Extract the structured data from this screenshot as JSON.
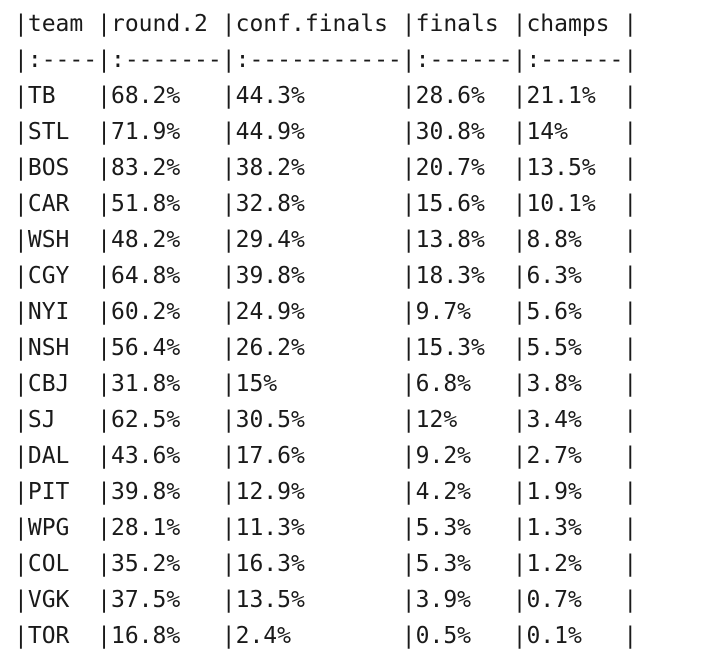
{
  "table": {
    "header": [
      "team",
      "round.2",
      "conf.finals",
      "finals",
      "champs"
    ],
    "separator": [
      ":----",
      ":-------",
      ":-----------",
      ":------",
      ":------"
    ],
    "rows": [
      [
        "TB",
        "68.2%",
        "44.3%",
        "28.6%",
        "21.1%"
      ],
      [
        "STL",
        "71.9%",
        "44.9%",
        "30.8%",
        "14%"
      ],
      [
        "BOS",
        "83.2%",
        "38.2%",
        "20.7%",
        "13.5%"
      ],
      [
        "CAR",
        "51.8%",
        "32.8%",
        "15.6%",
        "10.1%"
      ],
      [
        "WSH",
        "48.2%",
        "29.4%",
        "13.8%",
        "8.8%"
      ],
      [
        "CGY",
        "64.8%",
        "39.8%",
        "18.3%",
        "6.3%"
      ],
      [
        "NYI",
        "60.2%",
        "24.9%",
        "9.7%",
        "5.6%"
      ],
      [
        "NSH",
        "56.4%",
        "26.2%",
        "15.3%",
        "5.5%"
      ],
      [
        "CBJ",
        "31.8%",
        "15%",
        "6.8%",
        "3.8%"
      ],
      [
        "SJ",
        "62.5%",
        "30.5%",
        "12%",
        "3.4%"
      ],
      [
        "DAL",
        "43.6%",
        "17.6%",
        "9.2%",
        "2.7%"
      ],
      [
        "PIT",
        "39.8%",
        "12.9%",
        "4.2%",
        "1.9%"
      ],
      [
        "WPG",
        "28.1%",
        "11.3%",
        "5.3%",
        "1.3%"
      ],
      [
        "COL",
        "35.2%",
        "16.3%",
        "5.3%",
        "1.2%"
      ],
      [
        "VGK",
        "37.5%",
        "13.5%",
        "3.9%",
        "0.7%"
      ],
      [
        "TOR",
        "16.8%",
        "2.4%",
        "0.5%",
        "0.1%"
      ]
    ]
  }
}
